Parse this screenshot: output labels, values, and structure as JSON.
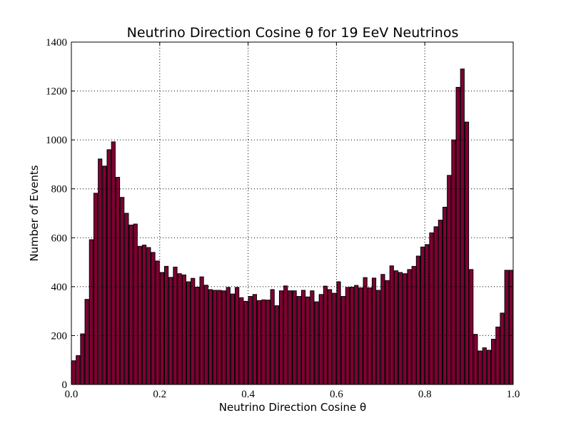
{
  "chart_data": {
    "type": "histogram",
    "title": "Neutrino Direction Cosine θ for 19 EeV Neutrinos",
    "x_label": "Neutrino Direction Cosine θ",
    "y_label": "Number of Events",
    "color": "#800033",
    "grid": true,
    "bins": [
      0,
      0.01,
      0.02,
      0.03,
      0.04,
      0.05,
      0.06,
      0.07,
      0.08,
      0.09,
      0.1,
      0.11,
      0.12,
      0.13,
      0.14,
      0.15,
      0.16,
      0.17,
      0.18,
      0.19,
      0.2,
      0.21,
      0.22,
      0.23,
      0.24,
      0.25,
      0.26,
      0.27,
      0.28,
      0.29,
      0.3,
      0.31,
      0.32,
      0.33,
      0.34,
      0.35,
      0.36,
      0.37,
      0.38,
      0.39,
      0.4,
      0.41,
      0.42,
      0.43,
      0.44,
      0.45,
      0.46,
      0.47,
      0.48,
      0.49,
      0.5,
      0.51,
      0.52,
      0.53,
      0.54,
      0.55,
      0.56,
      0.57,
      0.58,
      0.59,
      0.6,
      0.61,
      0.62,
      0.63,
      0.64,
      0.65,
      0.66,
      0.67,
      0.68,
      0.69,
      0.7,
      0.71,
      0.72,
      0.73,
      0.74,
      0.75,
      0.76,
      0.77,
      0.78,
      0.79,
      0.8,
      0.81,
      0.82,
      0.83,
      0.84,
      0.85,
      0.86,
      0.87,
      0.88,
      0.89,
      0.9,
      0.91,
      0.92,
      0.93,
      0.94,
      0.95,
      0.96,
      0.97,
      0.98,
      0.99,
      1
    ],
    "values": [
      97,
      118,
      207,
      348,
      592,
      782,
      922,
      893,
      960,
      992,
      847,
      765,
      700,
      652,
      656,
      565,
      570,
      560,
      540,
      505,
      458,
      483,
      438,
      480,
      453,
      448,
      420,
      434,
      398,
      440,
      406,
      388,
      385,
      385,
      383,
      397,
      370,
      397,
      355,
      340,
      360,
      368,
      343,
      346,
      345,
      388,
      322,
      383,
      403,
      383,
      383,
      360,
      385,
      358,
      383,
      338,
      368,
      402,
      388,
      373,
      420,
      360,
      397,
      398,
      405,
      395,
      437,
      395,
      435,
      385,
      450,
      425,
      485,
      465,
      458,
      453,
      470,
      483,
      525,
      562,
      572,
      620,
      645,
      672,
      725,
      855,
      1000,
      1215,
      1290,
      1073,
      470,
      205,
      137,
      150,
      140,
      185,
      235,
      292,
      467,
      467
    ],
    "xlim": [
      0,
      1
    ],
    "ylim": [
      0,
      1400
    ],
    "xticks": [
      {
        "value": 0,
        "label": "0.0"
      },
      {
        "value": 0.2,
        "label": "0.2"
      },
      {
        "value": 0.4,
        "label": "0.4"
      },
      {
        "value": 0.6,
        "label": "0.6"
      },
      {
        "value": 0.8,
        "label": "0.8"
      },
      {
        "value": 1,
        "label": "1.0"
      }
    ],
    "yticks": [
      0,
      200,
      400,
      600,
      800,
      1000,
      1200,
      1400
    ]
  }
}
